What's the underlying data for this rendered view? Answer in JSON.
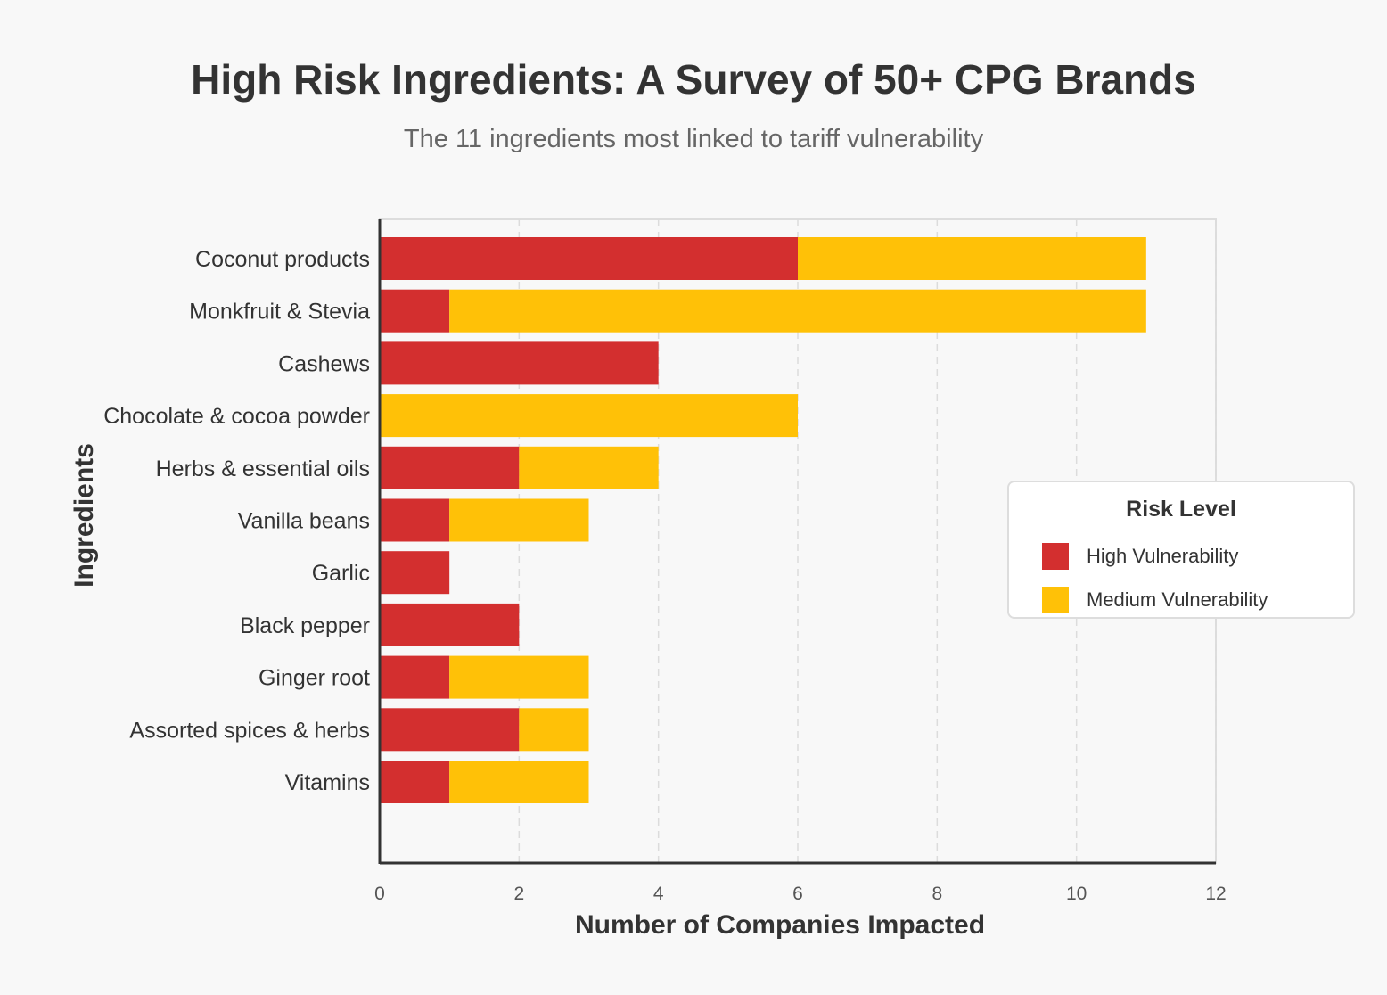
{
  "chart_data": {
    "type": "bar",
    "orientation": "horizontal",
    "stacked": true,
    "title": "High Risk Ingredients: A Survey of 50+ CPG Brands",
    "subtitle": "The 11 ingredients most linked to tariff vulnerability",
    "xlabel": "Number of Companies Impacted",
    "ylabel": "Ingredients",
    "xlim": [
      0,
      12
    ],
    "xticks": [
      "0",
      "2",
      "4",
      "6",
      "8",
      "10",
      "12"
    ],
    "grid": "vertical dashed",
    "legend_position": "right",
    "categories": [
      "Coconut products",
      "Monkfruit & Stevia",
      "Cashews",
      "Chocolate & cocoa powder",
      "Herbs & essential oils",
      "Vanilla beans",
      "Garlic",
      "Black pepper",
      "Ginger root",
      "Assorted spices & herbs",
      "Vitamins"
    ],
    "series": [
      {
        "name": "High Vulnerability",
        "color": "#d32f2f",
        "values": [
          6,
          1,
          4,
          0,
          2,
          1,
          1,
          2,
          1,
          2,
          1
        ]
      },
      {
        "name": "Medium Vulnerability",
        "color": "#ffc107",
        "values": [
          5,
          10,
          0,
          6,
          2,
          2,
          0,
          0,
          2,
          1,
          2
        ]
      }
    ]
  },
  "legend": {
    "title": "Risk Level",
    "items": [
      {
        "label": "High Vulnerability",
        "color": "#d32f2f"
      },
      {
        "label": "Medium Vulnerability",
        "color": "#ffc107"
      }
    ]
  }
}
